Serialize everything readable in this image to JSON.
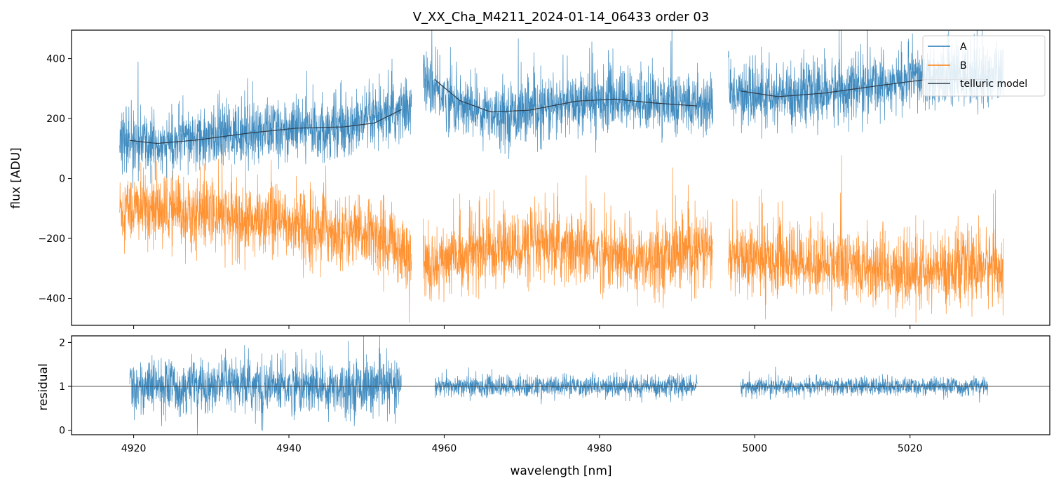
{
  "chart_data": [
    {
      "type": "line",
      "panel": "top",
      "title": "V_XX_Cha_M4211_2024-01-14_06433  order 03",
      "xlabel": "",
      "ylabel": "flux [ADU]",
      "xlim": [
        4912,
        5038
      ],
      "ylim": [
        -490,
        495
      ],
      "xticks": [
        4920,
        4940,
        4960,
        4980,
        5000,
        5020
      ],
      "yticks": [
        400,
        200,
        0,
        -200,
        -400
      ],
      "ytick_labels": [
        "400",
        "200",
        "0",
        "−200",
        "−400"
      ],
      "legend_position": "top-right",
      "segments": [
        [
          4918.2,
          4955.8
        ],
        [
          4957.3,
          4994.6
        ],
        [
          4996.6,
          5032.0
        ]
      ],
      "series": [
        {
          "name": "A",
          "color": "#1f77b4",
          "trend": [
            [
              4918,
              120
            ],
            [
              4925,
              118
            ],
            [
              4935,
              155
            ],
            [
              4945,
              170
            ],
            [
              4952,
              195
            ],
            [
              4955.5,
              240
            ],
            [
              4957,
              330
            ],
            [
              4962,
              240
            ],
            [
              4968,
              215
            ],
            [
              4975,
              240
            ],
            [
              4982,
              268
            ],
            [
              4988,
              255
            ],
            [
              4994.5,
              245
            ],
            [
              4996.6,
              285
            ],
            [
              5002,
              270
            ],
            [
              5010,
              290
            ],
            [
              5018,
              325
            ],
            [
              5026,
              340
            ],
            [
              5032,
              345
            ]
          ],
          "noise_amplitude": 120
        },
        {
          "name": "B",
          "color": "#ff7f0e",
          "trend": [
            [
              4918,
              -95
            ],
            [
              4925,
              -110
            ],
            [
              4935,
              -140
            ],
            [
              4945,
              -170
            ],
            [
              4953,
              -205
            ],
            [
              4955.5,
              -260
            ],
            [
              4957.5,
              -290
            ],
            [
              4963,
              -250
            ],
            [
              4970,
              -225
            ],
            [
              4978,
              -240
            ],
            [
              4984,
              -270
            ],
            [
              4990,
              -250
            ],
            [
              4994.5,
              -240
            ],
            [
              4996.6,
              -270
            ],
            [
              5004,
              -270
            ],
            [
              5012,
              -290
            ],
            [
              5020,
              -320
            ],
            [
              5026,
              -300
            ],
            [
              5032,
              -290
            ]
          ],
          "noise_amplitude": 140
        },
        {
          "name": "telluric model",
          "color": "#2f3d4a",
          "segments_x": [
            [
              4919.5,
              4954.5
            ],
            [
              4958.8,
              4992.6
            ],
            [
              4998.2,
              5030.0
            ]
          ],
          "points": [
            [
              4919.5,
              127
            ],
            [
              4923,
              117
            ],
            [
              4928,
              128
            ],
            [
              4935,
              152
            ],
            [
              4941,
              168
            ],
            [
              4947,
              172
            ],
            [
              4951,
              185
            ],
            [
              4954.5,
              230
            ],
            [
              4958.8,
              330
            ],
            [
              4962,
              260
            ],
            [
              4966,
              222
            ],
            [
              4971,
              228
            ],
            [
              4977,
              258
            ],
            [
              4982,
              265
            ],
            [
              4987,
              252
            ],
            [
              4992.6,
              242
            ],
            [
              4998.2,
              292
            ],
            [
              5003,
              273
            ],
            [
              5009,
              285
            ],
            [
              5016,
              310
            ],
            [
              5022,
              330
            ],
            [
              5030,
              330
            ]
          ]
        }
      ]
    },
    {
      "type": "line",
      "panel": "bottom",
      "xlabel": "wavelength [nm]",
      "ylabel": "residual",
      "xlim": [
        4912,
        5038
      ],
      "ylim": [
        -0.1,
        2.15
      ],
      "xticks": [
        4920,
        4940,
        4960,
        4980,
        5000,
        5020
      ],
      "xtick_labels": [
        "4920",
        "4940",
        "4960",
        "4980",
        "5000",
        "5020"
      ],
      "yticks": [
        2,
        1,
        0
      ],
      "ytick_labels": [
        "2",
        "1",
        "0"
      ],
      "reference_line": 1,
      "series": [
        {
          "name": "residual",
          "color": "#1f77b4",
          "segments_x": [
            [
              4919.5,
              4954.5
            ],
            [
              4958.8,
              4992.6
            ],
            [
              4998.2,
              5030.0
            ]
          ],
          "noise_amplitude_by_segment": [
            0.75,
            0.3,
            0.25
          ]
        }
      ]
    }
  ]
}
